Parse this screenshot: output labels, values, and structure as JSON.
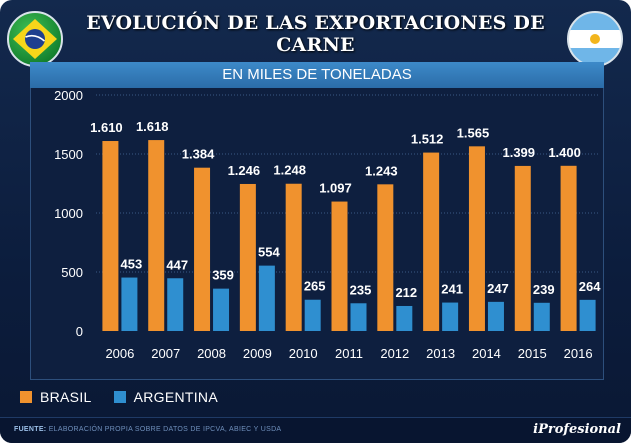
{
  "title": "EVOLUCIÓN DE LAS EXPORTACIONES DE CARNE",
  "subtitle": "EN MILES DE TONELADAS",
  "colors": {
    "brasil": "#f0922e",
    "argentina": "#2f8fd0"
  },
  "flags": [
    {
      "country": "Brazil",
      "icon": "brazil-flag-icon"
    },
    {
      "country": "Argentina",
      "icon": "argentina-flag-icon"
    }
  ],
  "source_prefix": "FUENTE:",
  "source_text": "ELABORACIÓN PROPIA SOBRE DATOS DE IPCVA, ABIEC Y USDA",
  "brand": "iProfesional",
  "chart_data": {
    "type": "bar",
    "title": "EVOLUCIÓN DE LAS EXPORTACIONES DE CARNE",
    "subtitle": "EN MILES DE TONELADAS",
    "xlabel": "",
    "ylabel": "",
    "ylim": [
      0,
      2000
    ],
    "yticks": [
      "0",
      "500",
      "1000",
      "1500",
      "2000"
    ],
    "ytick_values": [
      0,
      500,
      1000,
      1500,
      2000
    ],
    "grid": true,
    "legend_position": "bottom-left",
    "categories": [
      "2006",
      "2007",
      "2008",
      "2009",
      "2010",
      "2011",
      "2012",
      "2013",
      "2014",
      "2015",
      "2016"
    ],
    "series": [
      {
        "name": "BRASIL",
        "values": [
          1610,
          1618,
          1384,
          1246,
          1248,
          1097,
          1243,
          1512,
          1565,
          1399,
          1400
        ],
        "labels": [
          "1.610",
          "1.618",
          "1.384",
          "1.246",
          "1.248",
          "1.097",
          "1.243",
          "1.512",
          "1.565",
          "1.399",
          "1.400"
        ]
      },
      {
        "name": "ARGENTINA",
        "values": [
          453,
          447,
          359,
          554,
          265,
          235,
          212,
          241,
          247,
          239,
          264
        ],
        "labels": [
          "453",
          "447",
          "359",
          "554",
          "265",
          "235",
          "212",
          "241",
          "247",
          "239",
          "264"
        ]
      }
    ]
  }
}
